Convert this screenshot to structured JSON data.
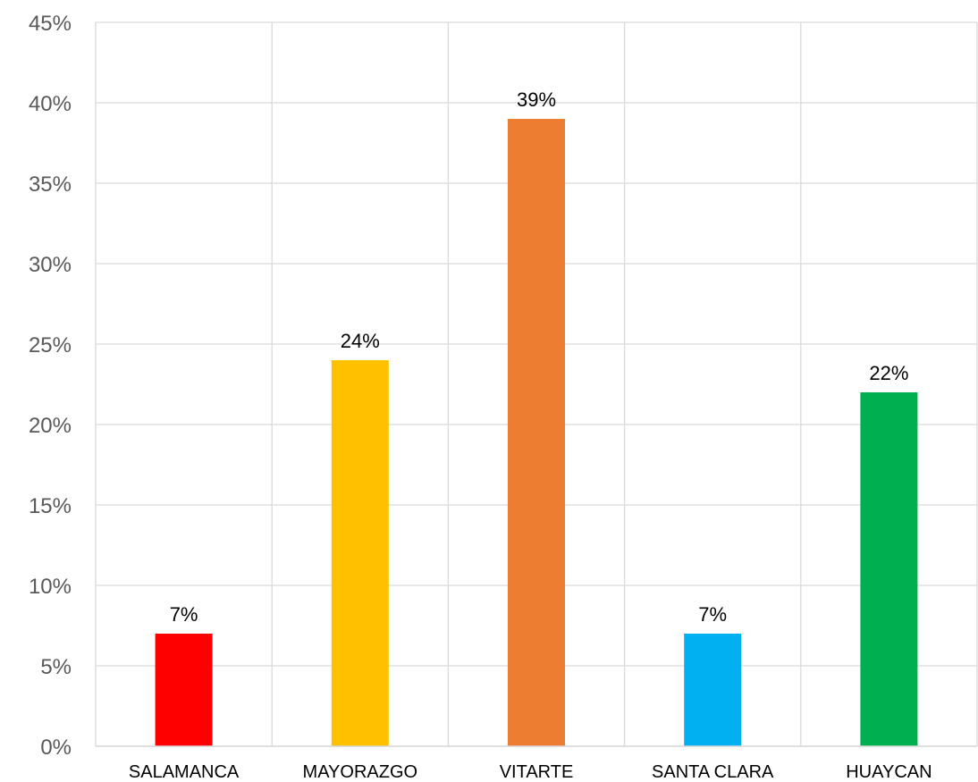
{
  "chart_data": {
    "type": "bar",
    "title": "",
    "xlabel": "",
    "ylabel": "",
    "categories": [
      "SALAMANCA",
      "MAYORAZGO",
      "VITARTE",
      "SANTA CLARA",
      "HUAYCAN"
    ],
    "values": [
      7,
      24,
      39,
      7,
      22
    ],
    "data_labels": [
      "7%",
      "24%",
      "39%",
      "7%",
      "22%"
    ],
    "colors": [
      "#FF0000",
      "#FFC000",
      "#ED7D31",
      "#00B0F0",
      "#00B050"
    ],
    "ylim": [
      0,
      45
    ],
    "yticks": [
      0,
      5,
      10,
      15,
      20,
      25,
      30,
      35,
      40,
      45
    ],
    "ytick_labels": [
      "0%",
      "5%",
      "10%",
      "15%",
      "20%",
      "25%",
      "30%",
      "35%",
      "40%",
      "45%"
    ],
    "grid": true,
    "legend": "none",
    "gridline_color": "#D9D9D9"
  }
}
